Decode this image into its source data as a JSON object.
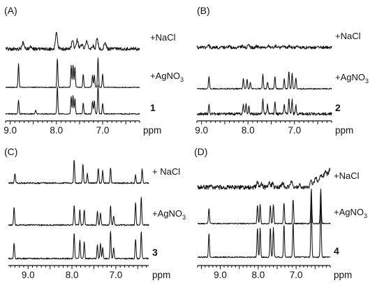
{
  "chart_data": [
    {
      "type": "line",
      "panel": "(A)",
      "compound": "1",
      "xlabel": "ppm",
      "xlim": [
        9.1,
        6.2
      ],
      "x_ticks": [
        "9.0",
        "8.0",
        "7.0"
      ],
      "series": [
        {
          "name": "+NaCl",
          "peaks": [
            [
              8.72,
              0.35
            ],
            [
              8.55,
              0.12
            ],
            [
              8.0,
              0.95
            ],
            [
              7.65,
              0.45
            ],
            [
              7.55,
              0.5
            ],
            [
              7.45,
              0.25
            ],
            [
              7.35,
              0.42
            ],
            [
              7.22,
              0.2
            ],
            [
              7.12,
              0.55
            ],
            [
              6.95,
              0.35
            ]
          ]
        },
        {
          "name": "+AgNO3",
          "peaks": [
            [
              8.82,
              0.8
            ],
            [
              7.98,
              1.0
            ],
            [
              7.68,
              0.75
            ],
            [
              7.64,
              0.78
            ],
            [
              7.6,
              0.7
            ],
            [
              7.42,
              0.45
            ],
            [
              7.22,
              0.4
            ],
            [
              7.18,
              0.42
            ],
            [
              7.1,
              1.0
            ],
            [
              7.0,
              0.45
            ]
          ]
        },
        {
          "name": "",
          "peaks": [
            [
              8.82,
              0.45
            ],
            [
              8.45,
              0.12
            ],
            [
              7.98,
              0.9
            ],
            [
              7.68,
              0.55
            ],
            [
              7.64,
              0.6
            ],
            [
              7.6,
              0.5
            ],
            [
              7.42,
              0.35
            ],
            [
              7.22,
              0.4
            ],
            [
              7.18,
              0.45
            ],
            [
              7.1,
              0.95
            ],
            [
              7.0,
              0.35
            ]
          ]
        }
      ]
    },
    {
      "type": "line",
      "panel": "(B)",
      "compound": "2",
      "xlabel": "ppm",
      "xlim": [
        9.1,
        6.2
      ],
      "x_ticks": [
        "9.0",
        "8.0",
        "7.0"
      ],
      "series": [
        {
          "name": "+NaCl",
          "peaks": [
            [
              8.85,
              0.25
            ],
            [
              8.4,
              0.12
            ],
            [
              8.12,
              0.15
            ],
            [
              7.98,
              0.25
            ],
            [
              7.82,
              0.2
            ],
            [
              7.55,
              0.25
            ],
            [
              7.4,
              0.18
            ],
            [
              7.22,
              0.15
            ],
            [
              7.1,
              0.2
            ],
            [
              6.95,
              0.12
            ]
          ]
        },
        {
          "name": "+AgNO3",
          "peaks": [
            [
              8.84,
              0.55
            ],
            [
              8.1,
              0.45
            ],
            [
              8.02,
              0.45
            ],
            [
              7.95,
              0.3
            ],
            [
              7.68,
              0.65
            ],
            [
              7.58,
              0.3
            ],
            [
              7.42,
              0.55
            ],
            [
              7.22,
              0.45
            ],
            [
              7.12,
              0.8
            ],
            [
              7.05,
              0.7
            ],
            [
              6.97,
              0.5
            ]
          ]
        },
        {
          "name": "",
          "peaks": [
            [
              8.84,
              0.45
            ],
            [
              8.1,
              0.5
            ],
            [
              8.04,
              0.5
            ],
            [
              7.98,
              0.35
            ],
            [
              7.68,
              0.7
            ],
            [
              7.58,
              0.45
            ],
            [
              7.42,
              0.55
            ],
            [
              7.22,
              0.5
            ],
            [
              7.12,
              0.75
            ],
            [
              7.05,
              0.65
            ],
            [
              6.97,
              0.45
            ]
          ]
        }
      ]
    },
    {
      "type": "line",
      "panel": "(C)",
      "compound": "3",
      "xlabel": "ppm",
      "xlim": [
        9.45,
        6.25
      ],
      "x_ticks": [
        "9.0",
        "8.0",
        "7.0"
      ],
      "series": [
        {
          "name": "+ NaCl",
          "peaks": [
            [
              9.3,
              0.35
            ],
            [
              7.95,
              0.85
            ],
            [
              7.75,
              0.7
            ],
            [
              7.65,
              0.35
            ],
            [
              7.4,
              0.55
            ],
            [
              7.3,
              0.45
            ],
            [
              7.12,
              0.55
            ],
            [
              6.55,
              0.3
            ],
            [
              6.4,
              0.5
            ]
          ]
        },
        {
          "name": "+AgNO3",
          "peaks": [
            [
              9.32,
              0.65
            ],
            [
              7.95,
              0.7
            ],
            [
              7.82,
              0.55
            ],
            [
              7.72,
              0.55
            ],
            [
              7.42,
              0.5
            ],
            [
              7.35,
              0.45
            ],
            [
              7.12,
              0.7
            ],
            [
              7.05,
              0.35
            ],
            [
              6.55,
              0.8
            ],
            [
              6.42,
              1.0
            ]
          ]
        },
        {
          "name": "",
          "peaks": [
            [
              9.32,
              0.5
            ],
            [
              7.95,
              0.85
            ],
            [
              7.82,
              0.6
            ],
            [
              7.72,
              0.55
            ],
            [
              7.42,
              0.45
            ],
            [
              7.35,
              0.5
            ],
            [
              7.3,
              0.35
            ],
            [
              7.12,
              0.9
            ],
            [
              7.05,
              0.35
            ],
            [
              6.55,
              0.65
            ],
            [
              6.42,
              0.9
            ]
          ]
        }
      ]
    },
    {
      "type": "line",
      "panel": "(D)",
      "compound": "4",
      "xlabel": "ppm",
      "xlim": [
        9.6,
        6.1
      ],
      "x_ticks": [
        "9.0",
        "8.0",
        "7.0"
      ],
      "series": [
        {
          "name": "+NaCl",
          "peaks": [
            [
              9.25,
              0.25
            ],
            [
              8.02,
              0.35
            ],
            [
              7.92,
              0.3
            ],
            [
              7.7,
              0.3
            ],
            [
              7.62,
              0.25
            ],
            [
              7.35,
              0.35
            ],
            [
              7.12,
              0.45
            ],
            [
              6.9,
              0.2
            ]
          ]
        },
        {
          "name": "+AgNO3",
          "peaks": [
            [
              9.3,
              0.45
            ],
            [
              8.02,
              0.55
            ],
            [
              7.95,
              0.55
            ],
            [
              7.68,
              0.55
            ],
            [
              7.6,
              0.55
            ],
            [
              7.32,
              0.6
            ],
            [
              7.08,
              0.7
            ],
            [
              6.6,
              1.0
            ],
            [
              6.35,
              1.0
            ]
          ]
        },
        {
          "name": "",
          "peaks": [
            [
              9.3,
              0.4
            ],
            [
              8.02,
              0.5
            ],
            [
              7.95,
              0.5
            ],
            [
              7.68,
              0.5
            ],
            [
              7.6,
              0.5
            ],
            [
              7.32,
              0.55
            ],
            [
              7.08,
              0.6
            ],
            [
              6.6,
              1.0
            ],
            [
              6.35,
              1.0
            ]
          ]
        }
      ]
    }
  ]
}
